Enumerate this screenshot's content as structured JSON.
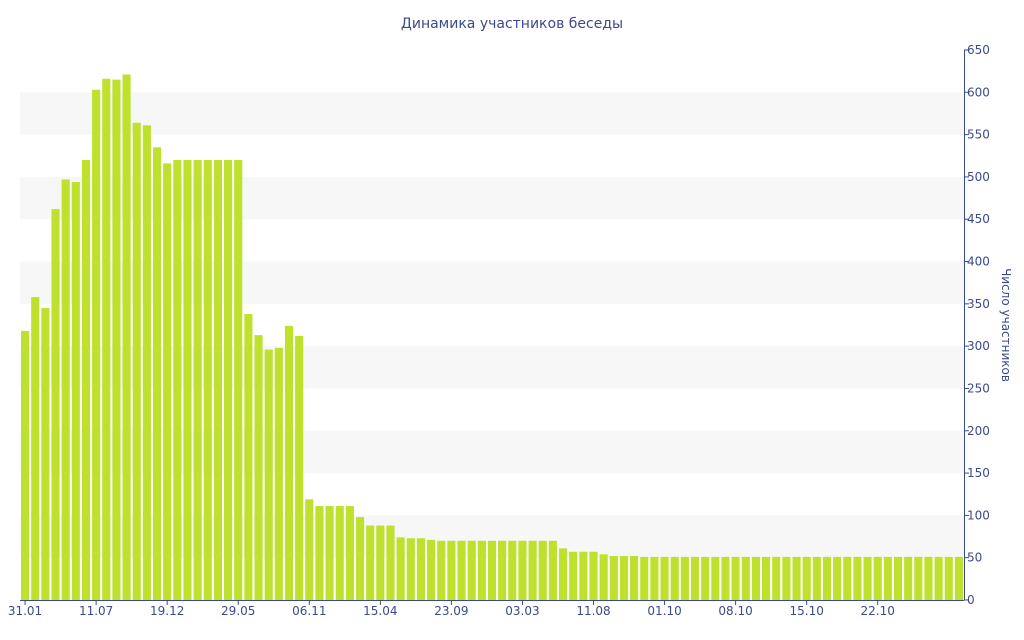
{
  "chart_data": {
    "type": "bar",
    "title": "Динамика участников беседы",
    "xlabel": "",
    "ylabel": "Число участников",
    "y_axis_side": "right",
    "ylim": [
      0,
      650
    ],
    "y_ticks": [
      0,
      50,
      100,
      150,
      200,
      250,
      300,
      350,
      400,
      450,
      500,
      550,
      600,
      650
    ],
    "grid": "alternating horizontal bands",
    "x_tick_labels": [
      {
        "index": 0,
        "label": "31.01"
      },
      {
        "index": 7,
        "label": "11.07"
      },
      {
        "index": 14,
        "label": "19.12"
      },
      {
        "index": 21,
        "label": "29.05"
      },
      {
        "index": 28,
        "label": "06.11"
      },
      {
        "index": 35,
        "label": "15.04"
      },
      {
        "index": 42,
        "label": "23.09"
      },
      {
        "index": 49,
        "label": "03.03"
      },
      {
        "index": 56,
        "label": "11.08"
      },
      {
        "index": 63,
        "label": "01.10"
      },
      {
        "index": 70,
        "label": "08.10"
      },
      {
        "index": 77,
        "label": "15.10"
      },
      {
        "index": 84,
        "label": "22.10"
      }
    ],
    "values": [
      318,
      358,
      345,
      462,
      497,
      494,
      520,
      603,
      616,
      615,
      621,
      564,
      561,
      535,
      516,
      520,
      520,
      520,
      520,
      520,
      520,
      520,
      338,
      313,
      296,
      298,
      324,
      312,
      119,
      111,
      111,
      111,
      111,
      98,
      88,
      88,
      88,
      74,
      73,
      73,
      71,
      70,
      70,
      70,
      70,
      70,
      70,
      70,
      70,
      70,
      70,
      70,
      70,
      61,
      57,
      57,
      57,
      54,
      52,
      52,
      52,
      51,
      51,
      51,
      51,
      51,
      51,
      51,
      51,
      51,
      51,
      51,
      51,
      51,
      51,
      51,
      51,
      51,
      51,
      51,
      51,
      51,
      51,
      51,
      51,
      51,
      51,
      51,
      51,
      51,
      51,
      51,
      51
    ],
    "colors": {
      "bar": "#bde12d",
      "band": "#f7f7f7",
      "axis": "#3b4a8c",
      "text": "#3b4a8c"
    }
  }
}
